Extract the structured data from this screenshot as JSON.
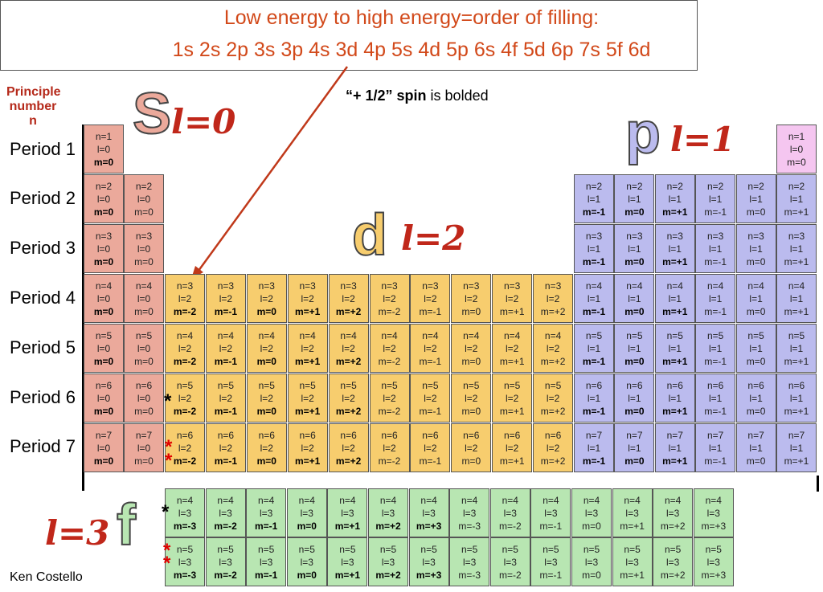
{
  "title": {
    "line1": "Low energy to high energy=order of filling:",
    "line2": "1s 2s 2p 3s 3p 4s 3d 4p 5s 4d 5p 6s 4f 5d 6p 7s 5f 6d"
  },
  "note": {
    "bold": "“+ 1/2” spin",
    "rest": " is bolded"
  },
  "principle_label": {
    "line1": "Principle",
    "line2": "number",
    "line3": "n"
  },
  "periods": [
    "Period 1",
    "Period 2",
    "Period 3",
    "Period 4",
    "Period 5",
    "Period 6",
    "Period 7"
  ],
  "block_labels": {
    "s": "S",
    "s_l": "l=0",
    "p": "p",
    "p_l": "l=1",
    "d": "d",
    "d_l": "l=2",
    "f": "f",
    "f_l": "l=3"
  },
  "stars": {
    "black": "*",
    "red": "*"
  },
  "author": "Ken Costello",
  "colors": {
    "s_block": "#eba99b",
    "p_block": "#bbbbee",
    "d_block": "#f7cd6e",
    "f_block": "#b8e6b2",
    "helium": "#f5c6f0",
    "accent": "#d2491a",
    "red_label": "#c0271a"
  }
}
